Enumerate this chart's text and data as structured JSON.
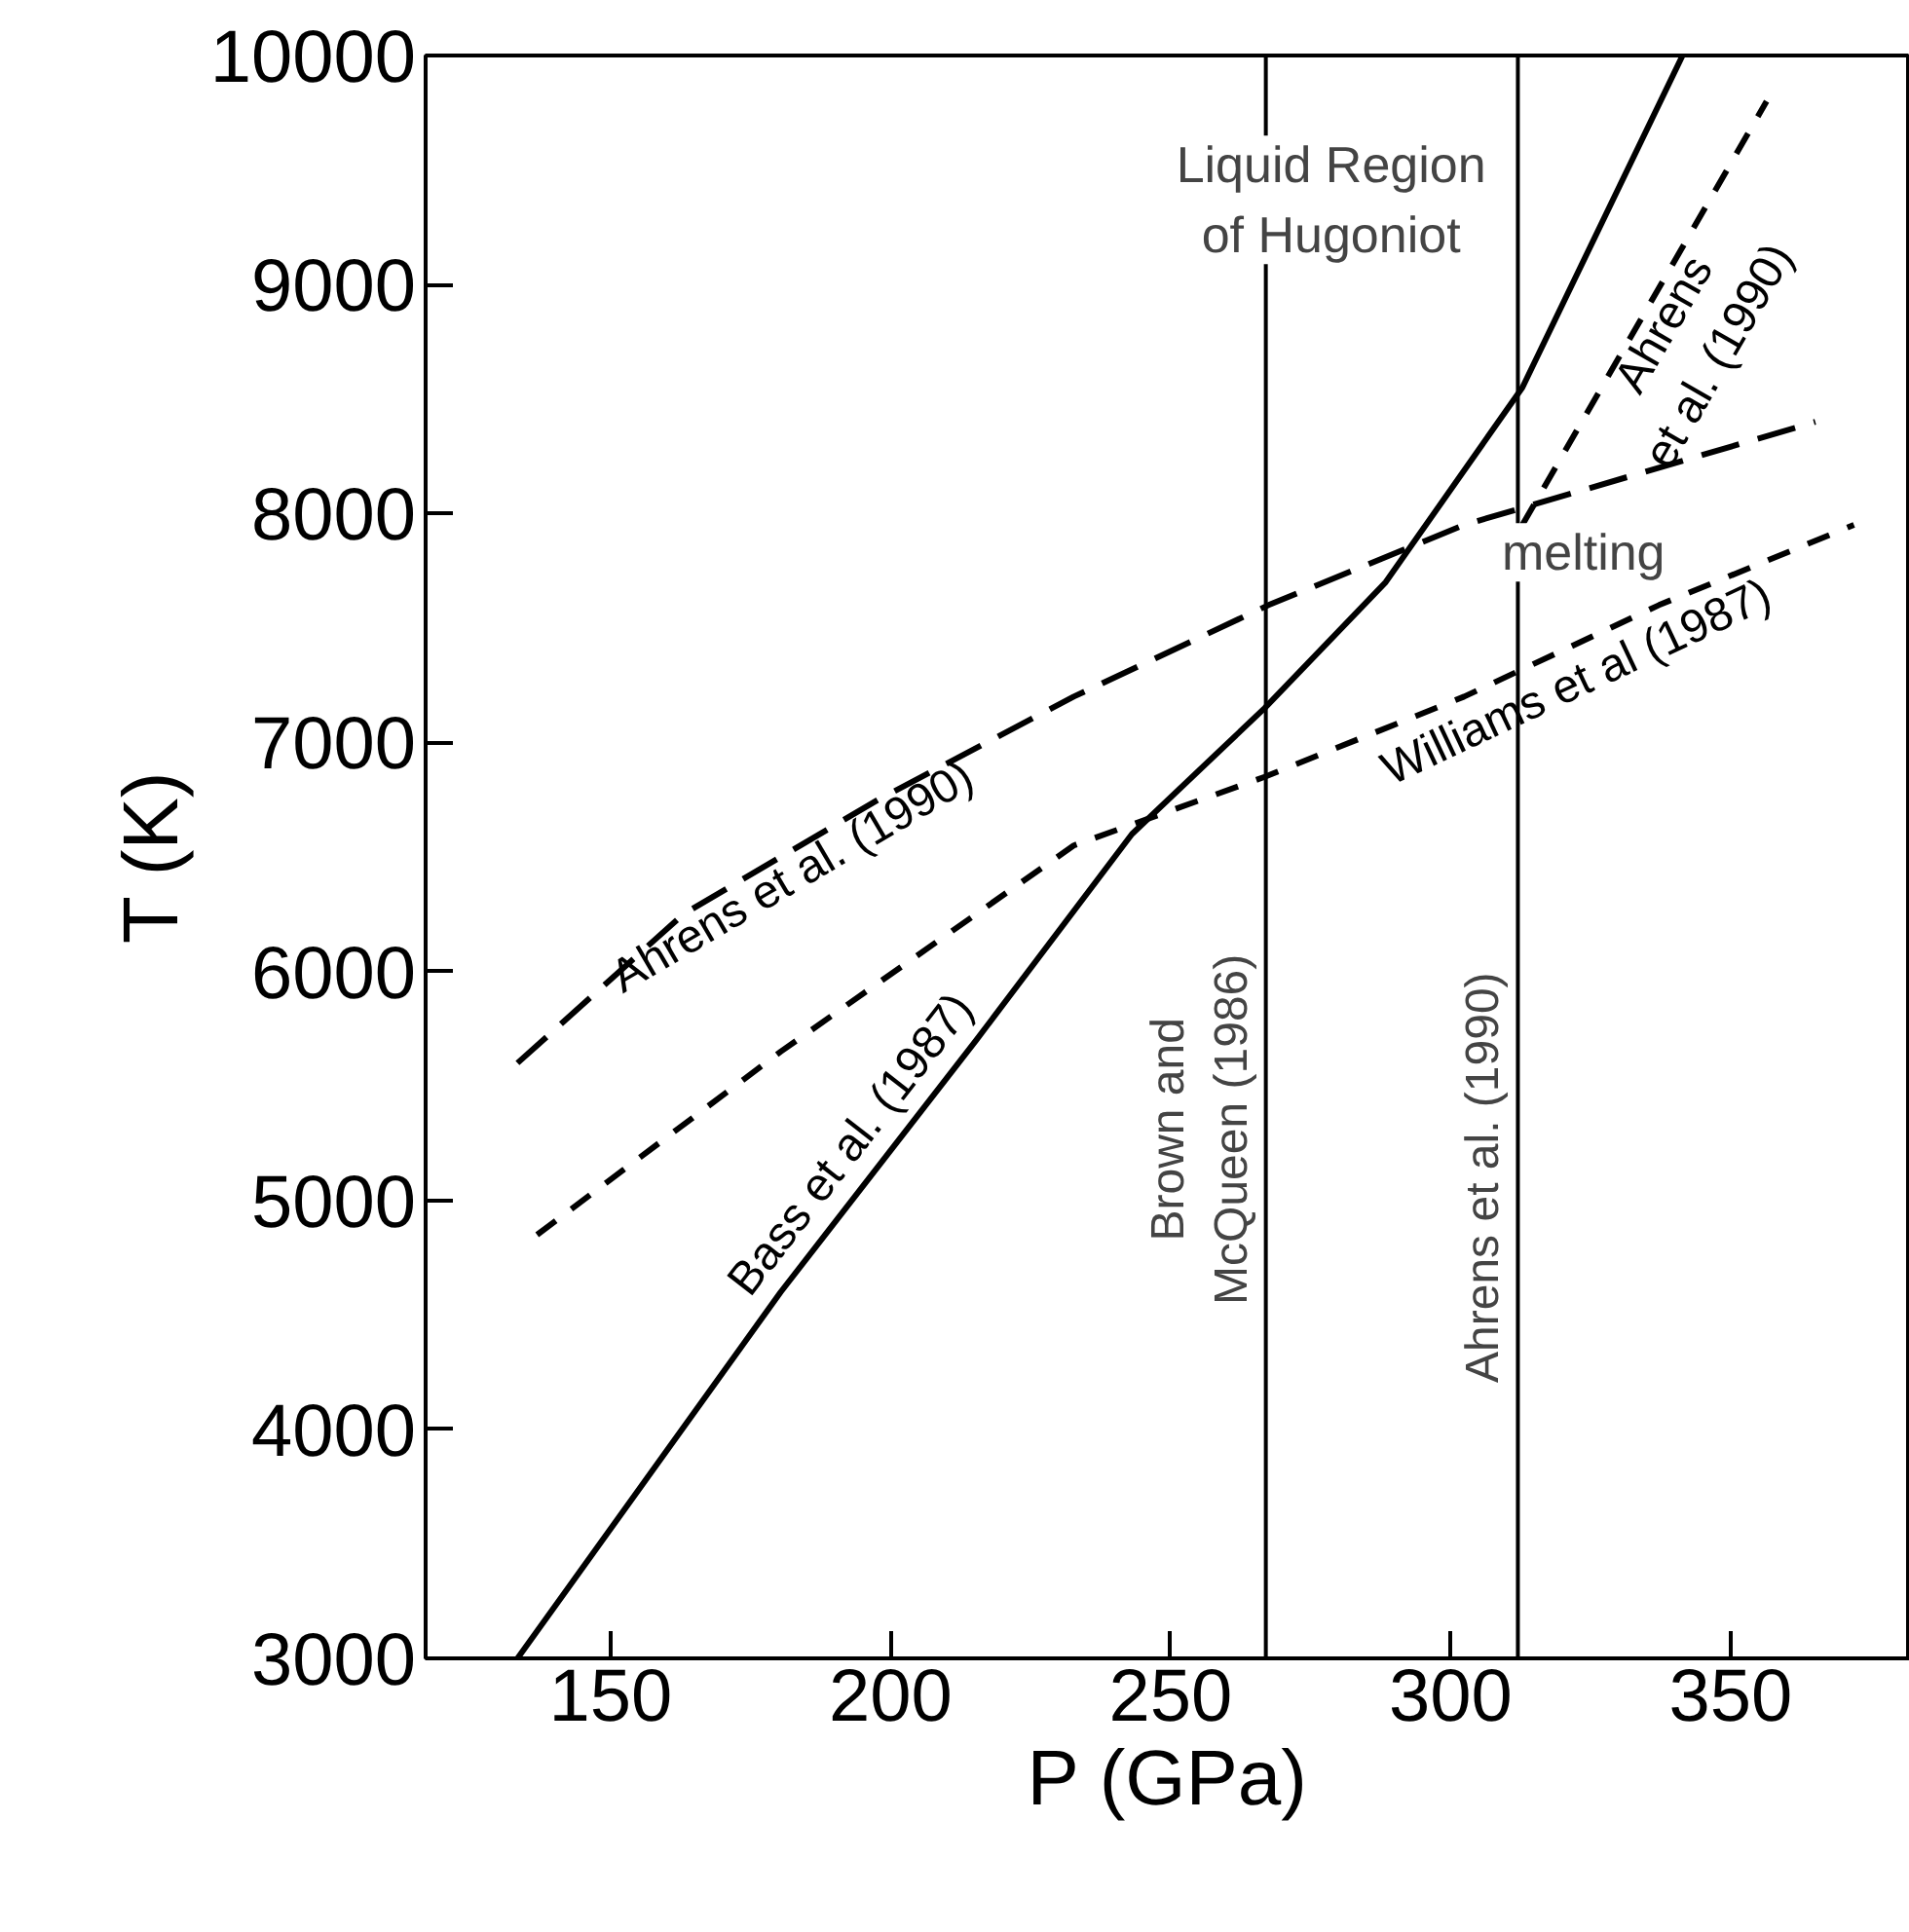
{
  "chart_data": {
    "type": "line",
    "xlabel": "P (GPa)",
    "ylabel": "T (K)",
    "xlim": [
      117,
      382
    ],
    "ylim": [
      3000,
      10000
    ],
    "xticks": [
      150,
      200,
      250,
      300,
      350
    ],
    "yticks": [
      3000,
      4000,
      5000,
      6000,
      7000,
      8000,
      9000,
      10000
    ],
    "grid": false,
    "marker": "none",
    "series": [
      {
        "name": "Bass et al. (1987)",
        "color": "#000000",
        "line_style": "solid",
        "x": [
          133.4,
          180.4,
          215.3,
          243.1,
          266.8,
          288.4,
          312.8,
          341.4
        ],
        "values": [
          3000,
          4600,
          5700,
          6600,
          7150,
          7700,
          8550,
          10000
        ]
      },
      {
        "name": "Ahrens et al. (1990)",
        "color": "#000000",
        "line_style": "dashed",
        "x": [
          133.4,
          163,
          197.8,
          232.7,
          267.5,
          302.4,
          365.1
        ],
        "values": [
          5600,
          6250,
          6750,
          7200,
          7600,
          7950,
          8400
        ]
      },
      {
        "name": "Williams et al (1987)",
        "color": "#000000",
        "line_style": "dotted",
        "x": [
          136.9,
          180.4,
          232.7,
          266.8,
          302.4,
          337.2,
          372
        ],
        "values": [
          4850,
          5650,
          6550,
          6850,
          7200,
          7600,
          7950
        ]
      },
      {
        "name": "Ahrens\net al. (1990)",
        "color": "#000000",
        "line_style": "dotted",
        "x": [
          312.8,
          356.4
        ],
        "values": [
          7950,
          9800
        ]
      }
    ],
    "ref_lines": [
      {
        "axis": "x",
        "value": 267,
        "label": "Brown and\nMcQueen (1986)"
      },
      {
        "axis": "x",
        "value": 312,
        "label": "Ahrens et al. (1990)"
      }
    ],
    "annotations": [
      "Liquid Region\nof Hugoniot",
      "melting"
    ]
  }
}
